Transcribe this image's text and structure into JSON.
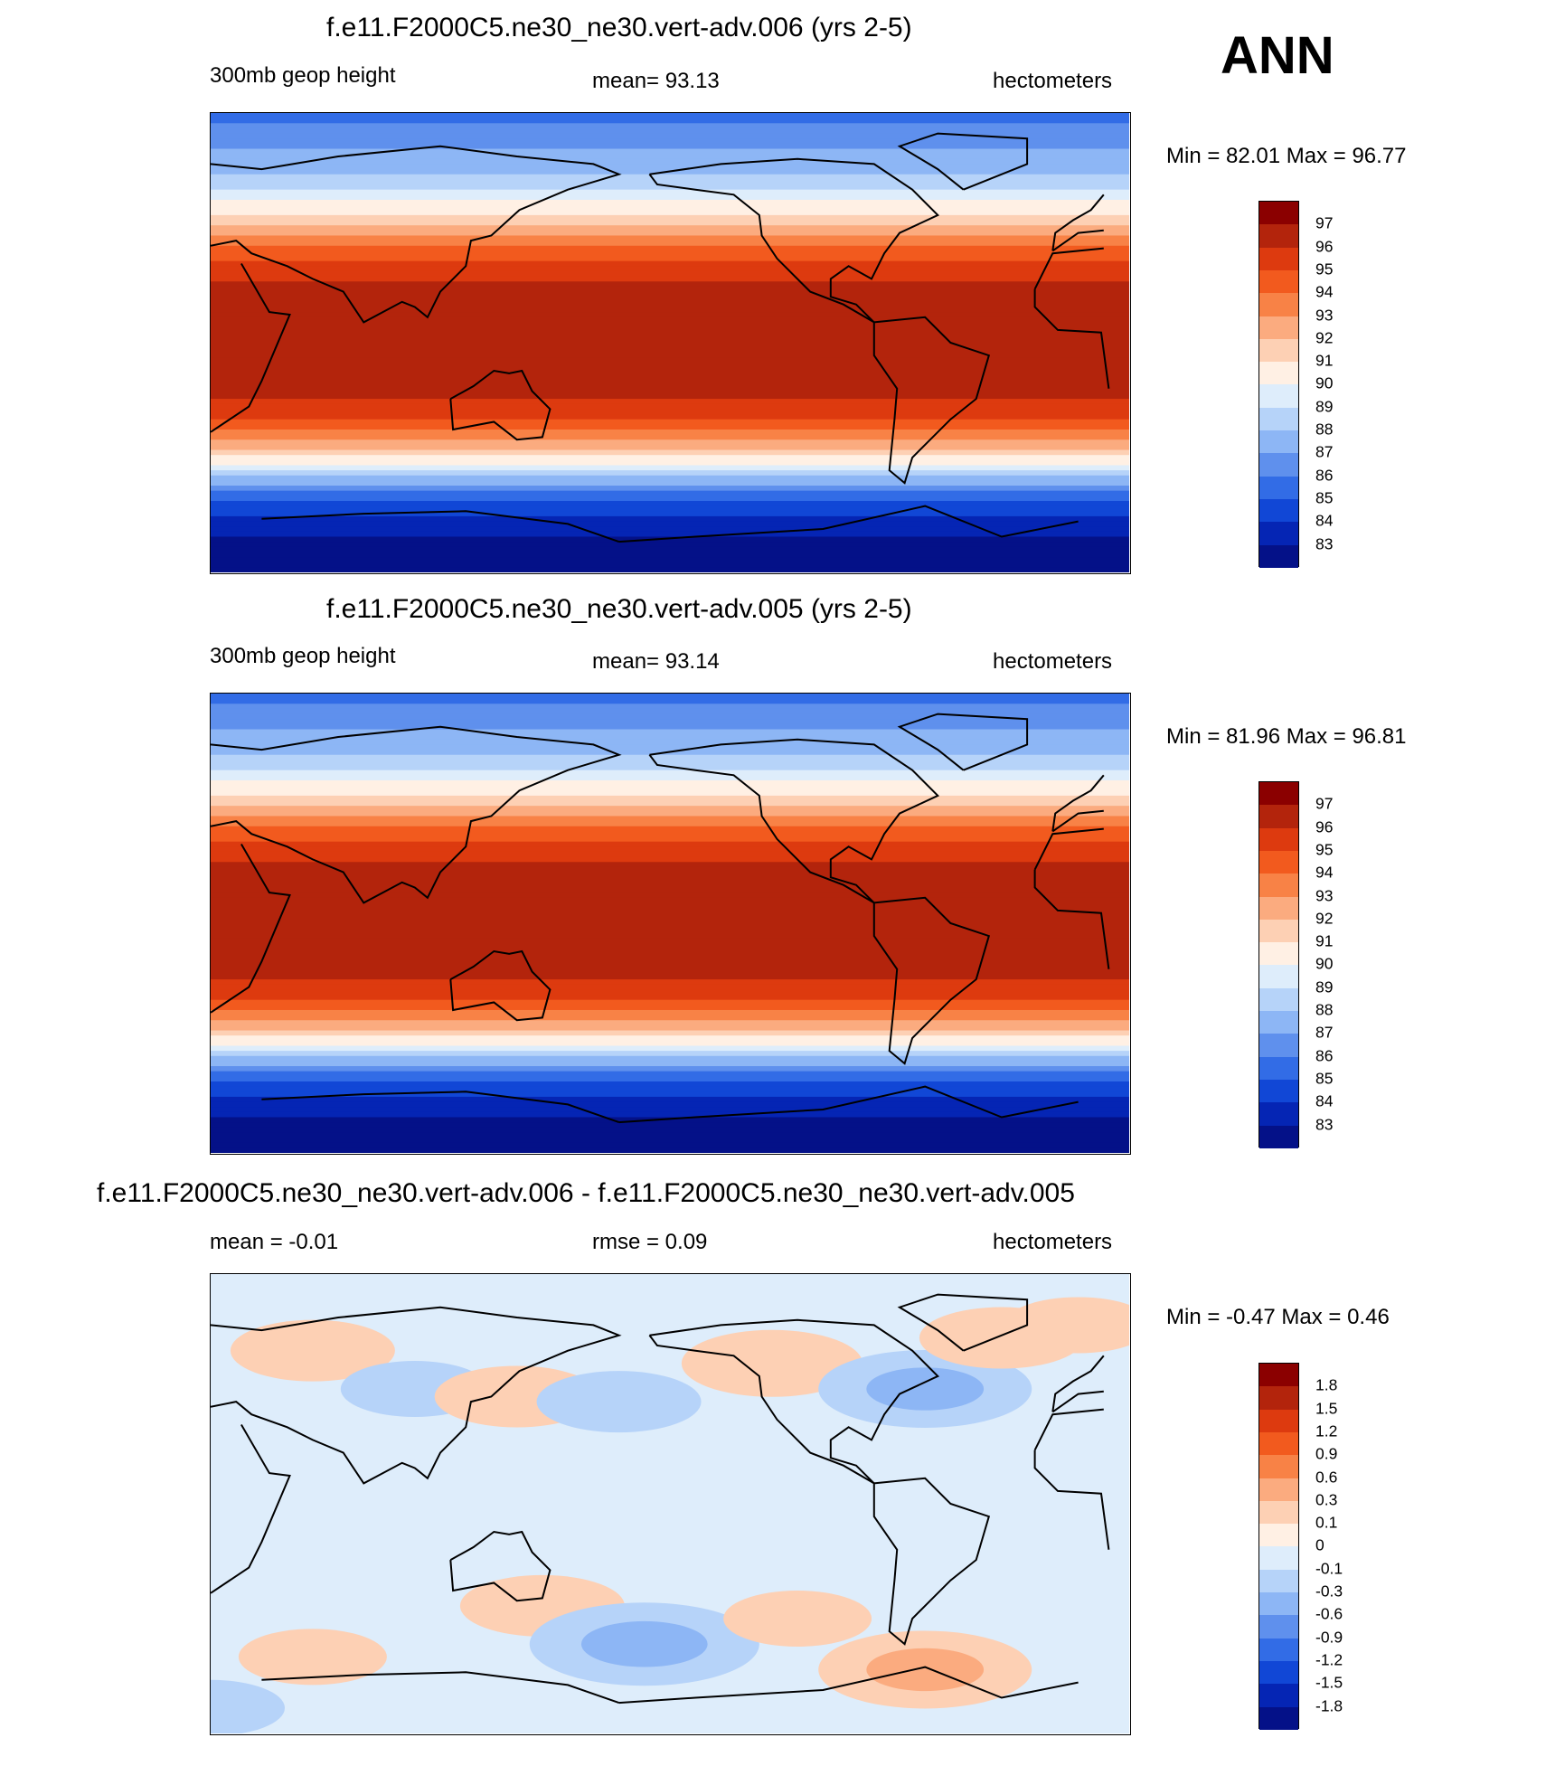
{
  "season": "ANN",
  "panels": [
    {
      "title": "f.e11.F2000C5.ne30_ne30.vert-adv.006 (yrs 2-5)",
      "left_label": "300mb geop height",
      "center_label": "mean=  93.13",
      "right_label": "hectometers",
      "minmax": "Min =  82.01 Max =  96.77"
    },
    {
      "title": "f.e11.F2000C5.ne30_ne30.vert-adv.005 (yrs 2-5)",
      "left_label": "300mb geop height",
      "center_label": "mean=  93.14",
      "right_label": "hectometers",
      "minmax": "Min =  81.96 Max =  96.81"
    },
    {
      "title": "f.e11.F2000C5.ne30_ne30.vert-adv.006 - f.e11.F2000C5.ne30_ne30.vert-adv.005",
      "left_label": "mean =  -0.01",
      "center_label": "rmse =   0.09",
      "right_label": "hectometers",
      "minmax": "Min =  -0.47 Max =   0.46"
    }
  ],
  "chart_data": [
    {
      "type": "heatmap",
      "title": "f.e11.F2000C5.ne30_ne30.vert-adv.006 (yrs 2-5)",
      "variable": "300mb geop height",
      "units": "hectometers",
      "mean": 93.13,
      "min": 82.01,
      "max": 96.77,
      "colorbar_levels": [
        "97",
        "96",
        "95",
        "94",
        "93",
        "92",
        "91",
        "90",
        "89",
        "88",
        "87",
        "86",
        "85",
        "84",
        "83"
      ],
      "colorbar_colors": [
        "#8b0000",
        "#b3240c",
        "#dd3a0f",
        "#f25a1e",
        "#f88246",
        "#fbab7f",
        "#fdd0b4",
        "#fff0e4",
        "#deedfb",
        "#b6d3f9",
        "#8db6f5",
        "#5f90ed",
        "#326ce6",
        "#1147d6",
        "#0525b4",
        "#041188"
      ],
      "zonal_profile": {
        "lat": [
          90,
          80,
          70,
          60,
          50,
          40,
          30,
          20,
          10,
          0,
          -10,
          -20,
          -30,
          -40,
          -50,
          -60,
          -70,
          -80,
          -90
        ],
        "value": [
          85.5,
          86.5,
          87.5,
          89,
          91,
          93.5,
          95.5,
          96.3,
          96.6,
          96.7,
          96.6,
          96.2,
          95,
          92.5,
          89,
          85.5,
          83.5,
          82.5,
          82
        ]
      }
    },
    {
      "type": "heatmap",
      "title": "f.e11.F2000C5.ne30_ne30.vert-adv.005 (yrs 2-5)",
      "variable": "300mb geop height",
      "units": "hectometers",
      "mean": 93.14,
      "min": 81.96,
      "max": 96.81,
      "colorbar_levels": [
        "97",
        "96",
        "95",
        "94",
        "93",
        "92",
        "91",
        "90",
        "89",
        "88",
        "87",
        "86",
        "85",
        "84",
        "83"
      ],
      "colorbar_colors": [
        "#8b0000",
        "#b3240c",
        "#dd3a0f",
        "#f25a1e",
        "#f88246",
        "#fbab7f",
        "#fdd0b4",
        "#fff0e4",
        "#deedfb",
        "#b6d3f9",
        "#8db6f5",
        "#5f90ed",
        "#326ce6",
        "#1147d6",
        "#0525b4",
        "#041188"
      ],
      "zonal_profile": {
        "lat": [
          90,
          80,
          70,
          60,
          50,
          40,
          30,
          20,
          10,
          0,
          -10,
          -20,
          -30,
          -40,
          -50,
          -60,
          -70,
          -80,
          -90
        ],
        "value": [
          85.5,
          86.5,
          87.5,
          89,
          91,
          93.5,
          95.5,
          96.3,
          96.6,
          96.7,
          96.6,
          96.2,
          95,
          92.5,
          89,
          85.5,
          83.5,
          82.5,
          82
        ]
      }
    },
    {
      "type": "heatmap",
      "title": "f.e11.F2000C5.ne30_ne30.vert-adv.006 - f.e11.F2000C5.ne30_ne30.vert-adv.005",
      "units": "hectometers",
      "mean": -0.01,
      "rmse": 0.09,
      "min": -0.47,
      "max": 0.46,
      "colorbar_levels": [
        "1.8",
        "1.5",
        "1.2",
        "0.9",
        "0.6",
        "0.3",
        "0.1",
        "0",
        "-0.1",
        "-0.3",
        "-0.6",
        "-0.9",
        "-1.2",
        "-1.5",
        "-1.8"
      ],
      "colorbar_colors": [
        "#8b0000",
        "#b3240c",
        "#dd3a0f",
        "#f25a1e",
        "#f88246",
        "#fbab7f",
        "#fdd0b4",
        "#fff0e4",
        "#deedfb",
        "#b6d3f9",
        "#8db6f5",
        "#5f90ed",
        "#326ce6",
        "#1147d6",
        "#0525b4",
        "#041188"
      ],
      "anomalies": [
        {
          "lon": 60,
          "lat": 60,
          "value": 0.2
        },
        {
          "lon": 0,
          "lat": 70,
          "value": 0.15
        },
        {
          "lon": 100,
          "lat": 45,
          "value": -0.15
        },
        {
          "lon": 140,
          "lat": 42,
          "value": 0.2
        },
        {
          "lon": 180,
          "lat": 40,
          "value": -0.2
        },
        {
          "lon": 240,
          "lat": 55,
          "value": 0.25
        },
        {
          "lon": 300,
          "lat": 45,
          "value": -0.35
        },
        {
          "lon": 330,
          "lat": 65,
          "value": 0.2
        },
        {
          "lon": 150,
          "lat": -40,
          "value": 0.2
        },
        {
          "lon": 190,
          "lat": -55,
          "value": -0.4
        },
        {
          "lon": 250,
          "lat": -45,
          "value": 0.15
        },
        {
          "lon": 300,
          "lat": -65,
          "value": 0.35
        },
        {
          "lon": 60,
          "lat": -60,
          "value": 0.15
        },
        {
          "lon": 20,
          "lat": -80,
          "value": -0.15
        }
      ]
    }
  ]
}
